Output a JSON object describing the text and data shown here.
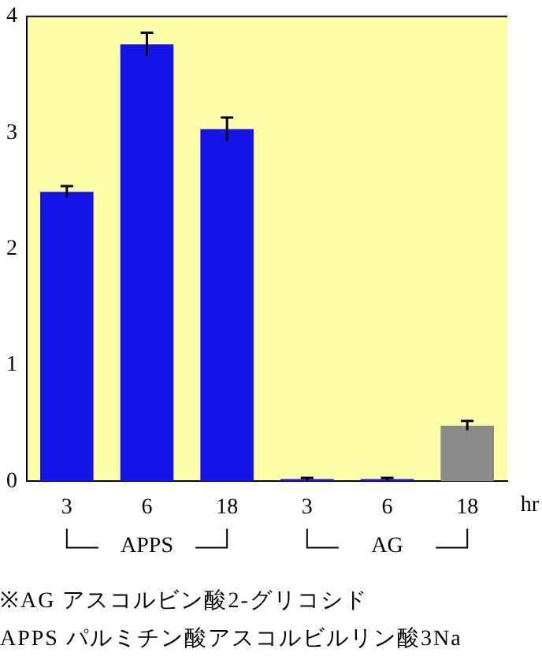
{
  "chart_data": {
    "type": "bar",
    "categories": [
      "3",
      "6",
      "18",
      "3",
      "6",
      "18"
    ],
    "xlabel": "hr",
    "values": [
      2.49,
      3.76,
      3.03,
      0.02,
      0.02,
      0.48
    ],
    "errors": [
      0.05,
      0.1,
      0.1,
      0.01,
      0.01,
      0.04
    ],
    "colors": [
      "#1414e6",
      "#1414e6",
      "#1414e6",
      "#1414e6",
      "#1414e6",
      "#8a8a8a"
    ],
    "ylim": [
      0,
      4
    ],
    "yticks": [
      0,
      1,
      2,
      3,
      4
    ],
    "grid": false,
    "legend": false,
    "annotations": [
      "APPS",
      "AG",
      "※AG アスコルビン酸2-グリコシド",
      "APPS パルミチン酸アスコルビルリン酸3Na"
    ]
  }
}
